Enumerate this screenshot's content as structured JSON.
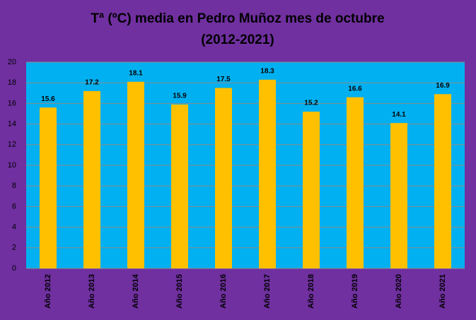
{
  "chart_data": {
    "type": "bar",
    "title": "Tª (ºC) media en Pedro Muñoz mes de octubre",
    "subtitle": "(2012-2021)",
    "categories": [
      "Año 2012",
      "Año 2013",
      "Año 2014",
      "Año 2015",
      "Año 2016",
      "Año 2017",
      "Año 2018",
      "Año 2019",
      "Año 2020",
      "Año 2021"
    ],
    "values": [
      15.6,
      17.2,
      18.1,
      15.9,
      17.5,
      18.3,
      15.2,
      16.6,
      14.1,
      16.9
    ],
    "color": "#ffc000",
    "ylim": [
      0,
      20
    ],
    "yticks": [
      0,
      2,
      4,
      6,
      8,
      10,
      12,
      14,
      16,
      18,
      20
    ],
    "grid": true
  }
}
